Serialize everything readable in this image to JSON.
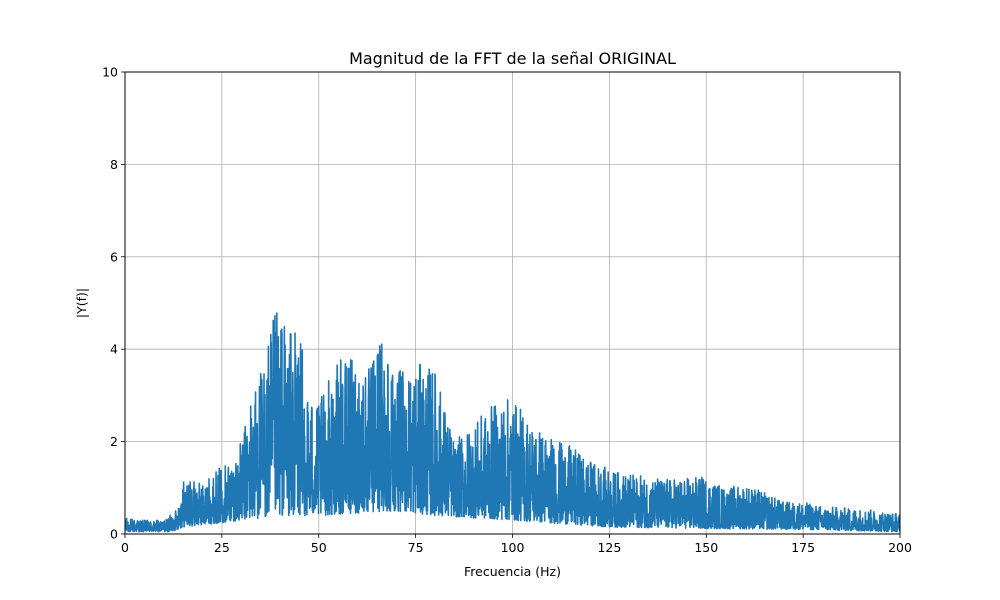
{
  "chart_data": {
    "type": "line",
    "title": "Magnitud de la FFT de la señal ORIGINAL",
    "xlabel": "Frecuencia (Hz)",
    "ylabel": "|Y(f)|",
    "xlim": [
      0,
      200
    ],
    "ylim": [
      0,
      10
    ],
    "xticks": [
      0,
      25,
      50,
      75,
      100,
      125,
      150,
      175,
      200
    ],
    "yticks": [
      0,
      2,
      4,
      6,
      8,
      10
    ],
    "grid": true,
    "series": [
      {
        "name": "|Y(f)|",
        "color": "#1f77b4",
        "envelope": [
          [
            0,
            0.35
          ],
          [
            5,
            0.3
          ],
          [
            10,
            0.3
          ],
          [
            13,
            0.5
          ],
          [
            15,
            1.2
          ],
          [
            20,
            1.1
          ],
          [
            25,
            1.5
          ],
          [
            28,
            1.7
          ],
          [
            30,
            2.0
          ],
          [
            33,
            3.2
          ],
          [
            36,
            3.8
          ],
          [
            38,
            4.6
          ],
          [
            40,
            5.05
          ],
          [
            42,
            4.4
          ],
          [
            45,
            4.5
          ],
          [
            47,
            3.2
          ],
          [
            50,
            2.8
          ],
          [
            53,
            3.5
          ],
          [
            56,
            3.8
          ],
          [
            60,
            3.9
          ],
          [
            63,
            3.6
          ],
          [
            66,
            4.5
          ],
          [
            67,
            5.1
          ],
          [
            68,
            4.2
          ],
          [
            70,
            3.5
          ],
          [
            75,
            3.7
          ],
          [
            80,
            3.6
          ],
          [
            85,
            2.0
          ],
          [
            90,
            2.4
          ],
          [
            95,
            2.8
          ],
          [
            100,
            3.0
          ],
          [
            103,
            2.6
          ],
          [
            110,
            2.1
          ],
          [
            115,
            1.9
          ],
          [
            120,
            1.6
          ],
          [
            125,
            1.4
          ],
          [
            130,
            1.3
          ],
          [
            140,
            1.2
          ],
          [
            150,
            1.25
          ],
          [
            155,
            1.0
          ],
          [
            160,
            1.1
          ],
          [
            165,
            0.9
          ],
          [
            170,
            0.7
          ],
          [
            175,
            0.7
          ],
          [
            180,
            0.6
          ],
          [
            190,
            0.55
          ],
          [
            200,
            0.45
          ]
        ],
        "floor": [
          [
            0,
            0.05
          ],
          [
            12,
            0.05
          ],
          [
            15,
            0.15
          ],
          [
            30,
            0.3
          ],
          [
            40,
            0.4
          ],
          [
            50,
            0.4
          ],
          [
            70,
            0.5
          ],
          [
            80,
            0.4
          ],
          [
            100,
            0.3
          ],
          [
            125,
            0.15
          ],
          [
            150,
            0.12
          ],
          [
            175,
            0.1
          ],
          [
            200,
            0.05
          ]
        ]
      }
    ]
  }
}
